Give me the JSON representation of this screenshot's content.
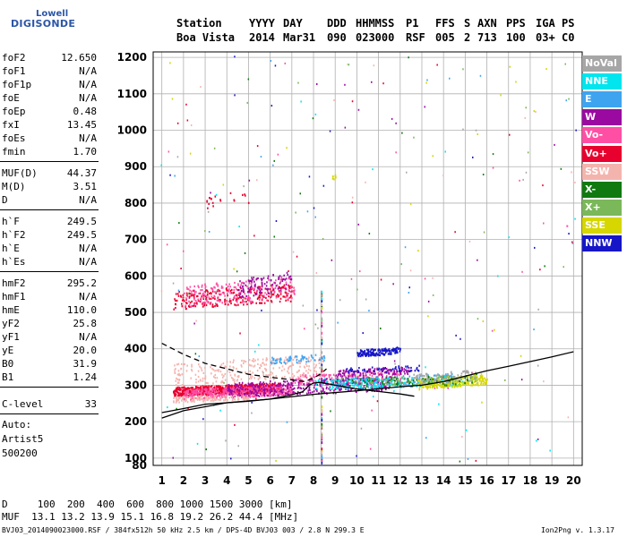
{
  "logo": {
    "line1": "Lowell",
    "line2": "DIGISONDE"
  },
  "header": {
    "labels": [
      "Station",
      "YYYY",
      "DAY",
      "DDD",
      "HHMMSS",
      "P1",
      "FFS",
      "S",
      "AXN",
      "PPS",
      "IGA",
      "PS"
    ],
    "values": [
      "Boa Vista",
      "2014",
      "Mar31",
      "090",
      "023000",
      "RSF",
      "005",
      "2",
      "713",
      "100",
      "03+",
      "C0"
    ]
  },
  "params": {
    "group1": [
      {
        "name": "foF2",
        "value": "12.650"
      },
      {
        "name": "foF1",
        "value": "N/A"
      },
      {
        "name": "foF1p",
        "value": "N/A"
      },
      {
        "name": "foE",
        "value": "N/A"
      },
      {
        "name": "foEp",
        "value": "0.48"
      },
      {
        "name": "fxI",
        "value": "13.45"
      },
      {
        "name": "foEs",
        "value": "N/A"
      },
      {
        "name": "fmin",
        "value": "1.70"
      }
    ],
    "group2": [
      {
        "name": "MUF(D)",
        "value": "44.37"
      },
      {
        "name": "M(D)",
        "value": "3.51"
      },
      {
        "name": "D",
        "value": "N/A"
      }
    ],
    "group3": [
      {
        "name": "h`F",
        "value": "249.5"
      },
      {
        "name": "h`F2",
        "value": "249.5"
      },
      {
        "name": "h`E",
        "value": "N/A"
      },
      {
        "name": "h`Es",
        "value": "N/A"
      }
    ],
    "group4": [
      {
        "name": "hmF2",
        "value": "295.2"
      },
      {
        "name": "hmF1",
        "value": "N/A"
      },
      {
        "name": "hmE",
        "value": "110.0"
      },
      {
        "name": "yF2",
        "value": "25.8"
      },
      {
        "name": "yF1",
        "value": "N/A"
      },
      {
        "name": "yE",
        "value": "20.0"
      },
      {
        "name": "B0",
        "value": "31.9"
      },
      {
        "name": "B1",
        "value": "1.24"
      }
    ],
    "clevel": {
      "name": "C-level",
      "value": "33"
    },
    "auto": [
      "Auto:",
      "Artist5",
      "500200"
    ]
  },
  "muf_table": {
    "d_line": "D     100  200  400  600  800 1000 1500 3000 [km]",
    "muf_line": "MUF  13.1 13.2 13.9 15.1 16.8 19.2 26.2 44.4 [MHz]"
  },
  "footer": {
    "left": "BVJ03_2014090023000.RSF / 384fx512h 50 kHz 2.5 km / DPS-4D BVJ03 003 / 2.8 N 299.3 E",
    "right": "Ion2Png v. 1.3.17"
  },
  "legend": [
    {
      "label": "NoVal",
      "color": "#a6a6a6"
    },
    {
      "label": "NNE",
      "color": "#00e5ee"
    },
    {
      "label": "E",
      "color": "#3fa4f0"
    },
    {
      "label": "W",
      "color": "#9a0aa0"
    },
    {
      "label": "Vo-",
      "color": "#ff4fa4"
    },
    {
      "label": "Vo+",
      "color": "#e8002e"
    },
    {
      "label": "SSW",
      "color": "#f4b4ae"
    },
    {
      "label": "X-",
      "color": "#107a10"
    },
    {
      "label": "X+",
      "color": "#7ab85a"
    },
    {
      "label": "SSE",
      "color": "#d6d600"
    },
    {
      "label": "NNW",
      "color": "#1616c8"
    }
  ],
  "chart_data": {
    "type": "scatter",
    "xlim": [
      0.6,
      20.4
    ],
    "ylim": [
      80,
      1215
    ],
    "x_ticks": [
      1,
      2,
      3,
      4,
      5,
      6,
      7,
      8,
      9,
      10,
      11,
      12,
      13,
      14,
      15,
      16,
      17,
      18,
      19,
      20
    ],
    "y_ticks": [
      80,
      100,
      200,
      300,
      400,
      500,
      600,
      700,
      800,
      900,
      1000,
      1100,
      1200
    ],
    "grid": true,
    "series": [
      {
        "name": "Vo+",
        "color": "#e8002e",
        "bands": [
          {
            "x": [
              1.5,
              6.5
            ],
            "h": [
              272,
              305
            ],
            "n": 700
          },
          {
            "x": [
              1.5,
              7.0
            ],
            "h": [
              510,
              575
            ],
            "n": 260
          },
          {
            "x": [
              3.0,
              5.0
            ],
            "h": [
              780,
              835
            ],
            "n": 20
          }
        ]
      },
      {
        "name": "Vo-",
        "color": "#ff4fa4",
        "bands": [
          {
            "x": [
              2.0,
              7.0
            ],
            "h": [
              262,
              300
            ],
            "n": 420
          },
          {
            "x": [
              2.0,
              7.2
            ],
            "h": [
              515,
              595
            ],
            "n": 200
          },
          {
            "x": [
              7.0,
              12.0
            ],
            "h": [
              300,
              340
            ],
            "n": 200
          }
        ]
      },
      {
        "name": "W",
        "color": "#9a0aa0",
        "bands": [
          {
            "x": [
              4.0,
              11.5
            ],
            "h": [
              268,
              322
            ],
            "n": 380
          },
          {
            "x": [
              4.5,
              7.0
            ],
            "h": [
              540,
              610
            ],
            "n": 90
          },
          {
            "x": [
              9.0,
              12.5
            ],
            "h": [
              325,
              350
            ],
            "n": 110
          }
        ]
      },
      {
        "name": "SSW",
        "color": "#f4b4ae",
        "bands": [
          {
            "x": [
              1.5,
              8.5
            ],
            "h": [
              300,
              380
            ],
            "n": 260
          },
          {
            "x": [
              1.5,
              5.0
            ],
            "h": [
              255,
              275
            ],
            "n": 120
          }
        ]
      },
      {
        "name": "E",
        "color": "#3fa4f0",
        "bands": [
          {
            "x": [
              6.0,
              8.5
            ],
            "h": [
              360,
              385
            ],
            "n": 60
          },
          {
            "x": [
              9.0,
              14.5
            ],
            "h": [
              290,
              330
            ],
            "n": 200
          }
        ]
      },
      {
        "name": "NNE",
        "color": "#00e5ee",
        "bands": [
          {
            "x": [
              8.0,
              15.0
            ],
            "h": [
              290,
              325
            ],
            "n": 160
          }
        ]
      },
      {
        "name": "NNW",
        "color": "#1616c8",
        "bands": [
          {
            "x": [
              10.0,
              12.0
            ],
            "h": [
              380,
              405
            ],
            "n": 160
          },
          {
            "x": [
              9.5,
              13.0
            ],
            "h": [
              335,
              355
            ],
            "n": 50
          }
        ]
      },
      {
        "name": "SSE",
        "color": "#d6d600",
        "bands": [
          {
            "x": [
              12.8,
              16.0
            ],
            "h": [
              290,
              330
            ],
            "n": 240
          },
          {
            "x": [
              8.8,
              9.0
            ],
            "h": [
              865,
              880
            ],
            "n": 8
          }
        ]
      },
      {
        "name": "X-",
        "color": "#107a10",
        "bands": [
          {
            "x": [
              9.0,
              15.5
            ],
            "h": [
              290,
              330
            ],
            "n": 90
          }
        ]
      },
      {
        "name": "X+",
        "color": "#7ab85a",
        "bands": [
          {
            "x": [
              10.5,
              15.5
            ],
            "h": [
              300,
              330
            ],
            "n": 60
          }
        ]
      },
      {
        "name": "NoVal",
        "color": "#a6a6a6",
        "bands": [
          {
            "x": [
              12.0,
              15.5
            ],
            "h": [
              300,
              340
            ],
            "n": 80
          }
        ]
      }
    ],
    "curves": [
      {
        "style": "solid",
        "x": [
          1.0,
          2.0,
          3.0,
          4.0,
          5.0,
          6.0,
          7.0,
          7.5,
          7.8,
          8.0,
          8.3,
          9.0,
          10.0,
          11.0,
          12.0,
          12.65
        ],
        "h": [
          225,
          236,
          248,
          252,
          256,
          262,
          274,
          282,
          300,
          306,
          308,
          300,
          290,
          283,
          276,
          270
        ]
      },
      {
        "style": "solid",
        "x": [
          1.0,
          2.0,
          4.0,
          6.0,
          8.0,
          10.0,
          12.0,
          13.0,
          14.0,
          15.0,
          16.0,
          17.0,
          18.0,
          19.0,
          20.0
        ],
        "h": [
          210,
          230,
          252,
          262,
          275,
          285,
          296,
          300,
          310,
          325,
          340,
          352,
          365,
          378,
          392
        ]
      },
      {
        "style": "dashed",
        "x": [
          1.0,
          1.5,
          2.0,
          3.0,
          4.0,
          5.0,
          6.0,
          7.0,
          7.6,
          8.0,
          8.3,
          8.6
        ],
        "h": [
          415,
          400,
          385,
          360,
          345,
          330,
          322,
          315,
          310,
          320,
          330,
          345
        ]
      }
    ]
  }
}
